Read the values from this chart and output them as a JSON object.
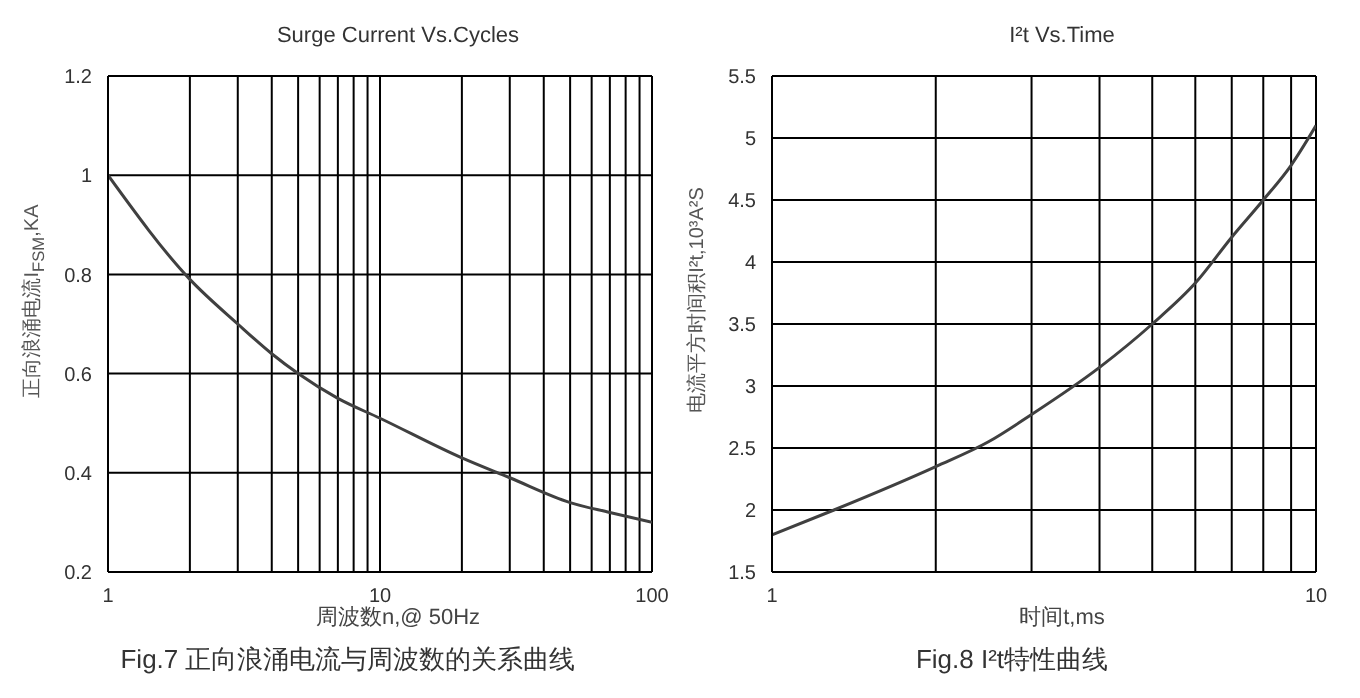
{
  "chart_data": [
    {
      "type": "line",
      "title": "Surge Current Vs.Cycles",
      "xlabel": "周波数n,@ 50Hz",
      "ylabel": "正向浪涌电流I$_{FSM}$,KA",
      "annotations": [
        "Fig.7 正向浪涌电流与周波数的关系曲线"
      ],
      "log": "x",
      "grid": true,
      "marker": "none",
      "line_style": "solid",
      "x": [
        1,
        2,
        3,
        4,
        5,
        7,
        10,
        20,
        30,
        50,
        70,
        100
      ],
      "series": [
        {
          "color": "#404040",
          "values": [
            1.0,
            0.79,
            0.7,
            0.64,
            0.6,
            0.55,
            0.51,
            0.43,
            0.39,
            0.34,
            0.32,
            0.3
          ]
        }
      ],
      "xlim": [
        1,
        100
      ],
      "xticks": [
        1,
        {
          "value": 2,
          "label": null
        },
        {
          "value": 3,
          "label": null
        },
        {
          "value": 4,
          "label": null
        },
        {
          "value": 5,
          "label": null
        },
        {
          "value": 6,
          "label": null
        },
        {
          "value": 7,
          "label": null
        },
        {
          "value": 8,
          "label": null
        },
        {
          "value": 9,
          "label": null
        },
        10,
        {
          "value": 20,
          "label": null
        },
        {
          "value": 30,
          "label": null
        },
        {
          "value": 40,
          "label": null
        },
        {
          "value": 50,
          "label": null
        },
        {
          "value": 60,
          "label": null
        },
        {
          "value": 70,
          "label": null
        },
        {
          "value": 80,
          "label": null
        },
        {
          "value": 90,
          "label": null
        },
        100
      ],
      "ylim": [
        0.2,
        1.2
      ],
      "yticks": [
        0.2,
        0.4,
        0.6,
        0.8,
        1,
        1.2
      ]
    },
    {
      "type": "line",
      "title": "I²t  Vs.Time",
      "xlabel": "时间t,ms",
      "ylabel": "电流平方时间积I²t,10³A²S",
      "annotations": [
        "Fig.8 I²t特性曲线"
      ],
      "log": "x",
      "grid": true,
      "marker": "none",
      "line_style": "solid",
      "x": [
        1,
        1.3,
        2,
        2.5,
        3,
        4,
        5,
        6,
        7,
        8,
        9,
        10
      ],
      "series": [
        {
          "color": "#404040",
          "values": [
            1.8,
            2.0,
            2.35,
            2.55,
            2.77,
            3.15,
            3.5,
            3.83,
            4.2,
            4.5,
            4.78,
            5.1
          ]
        }
      ],
      "xlim": [
        1,
        10
      ],
      "xticks": [
        1,
        {
          "value": 2,
          "label": null
        },
        {
          "value": 3,
          "label": null
        },
        {
          "value": 4,
          "label": null
        },
        {
          "value": 5,
          "label": null
        },
        {
          "value": 6,
          "label": null
        },
        {
          "value": 7,
          "label": null
        },
        {
          "value": 8,
          "label": null
        },
        {
          "value": 9,
          "label": null
        },
        10
      ],
      "ylim": [
        1.5,
        5.5
      ],
      "yticks": [
        1.5,
        2,
        2.5,
        3,
        3.5,
        4,
        4.5,
        5,
        5.5
      ]
    }
  ]
}
